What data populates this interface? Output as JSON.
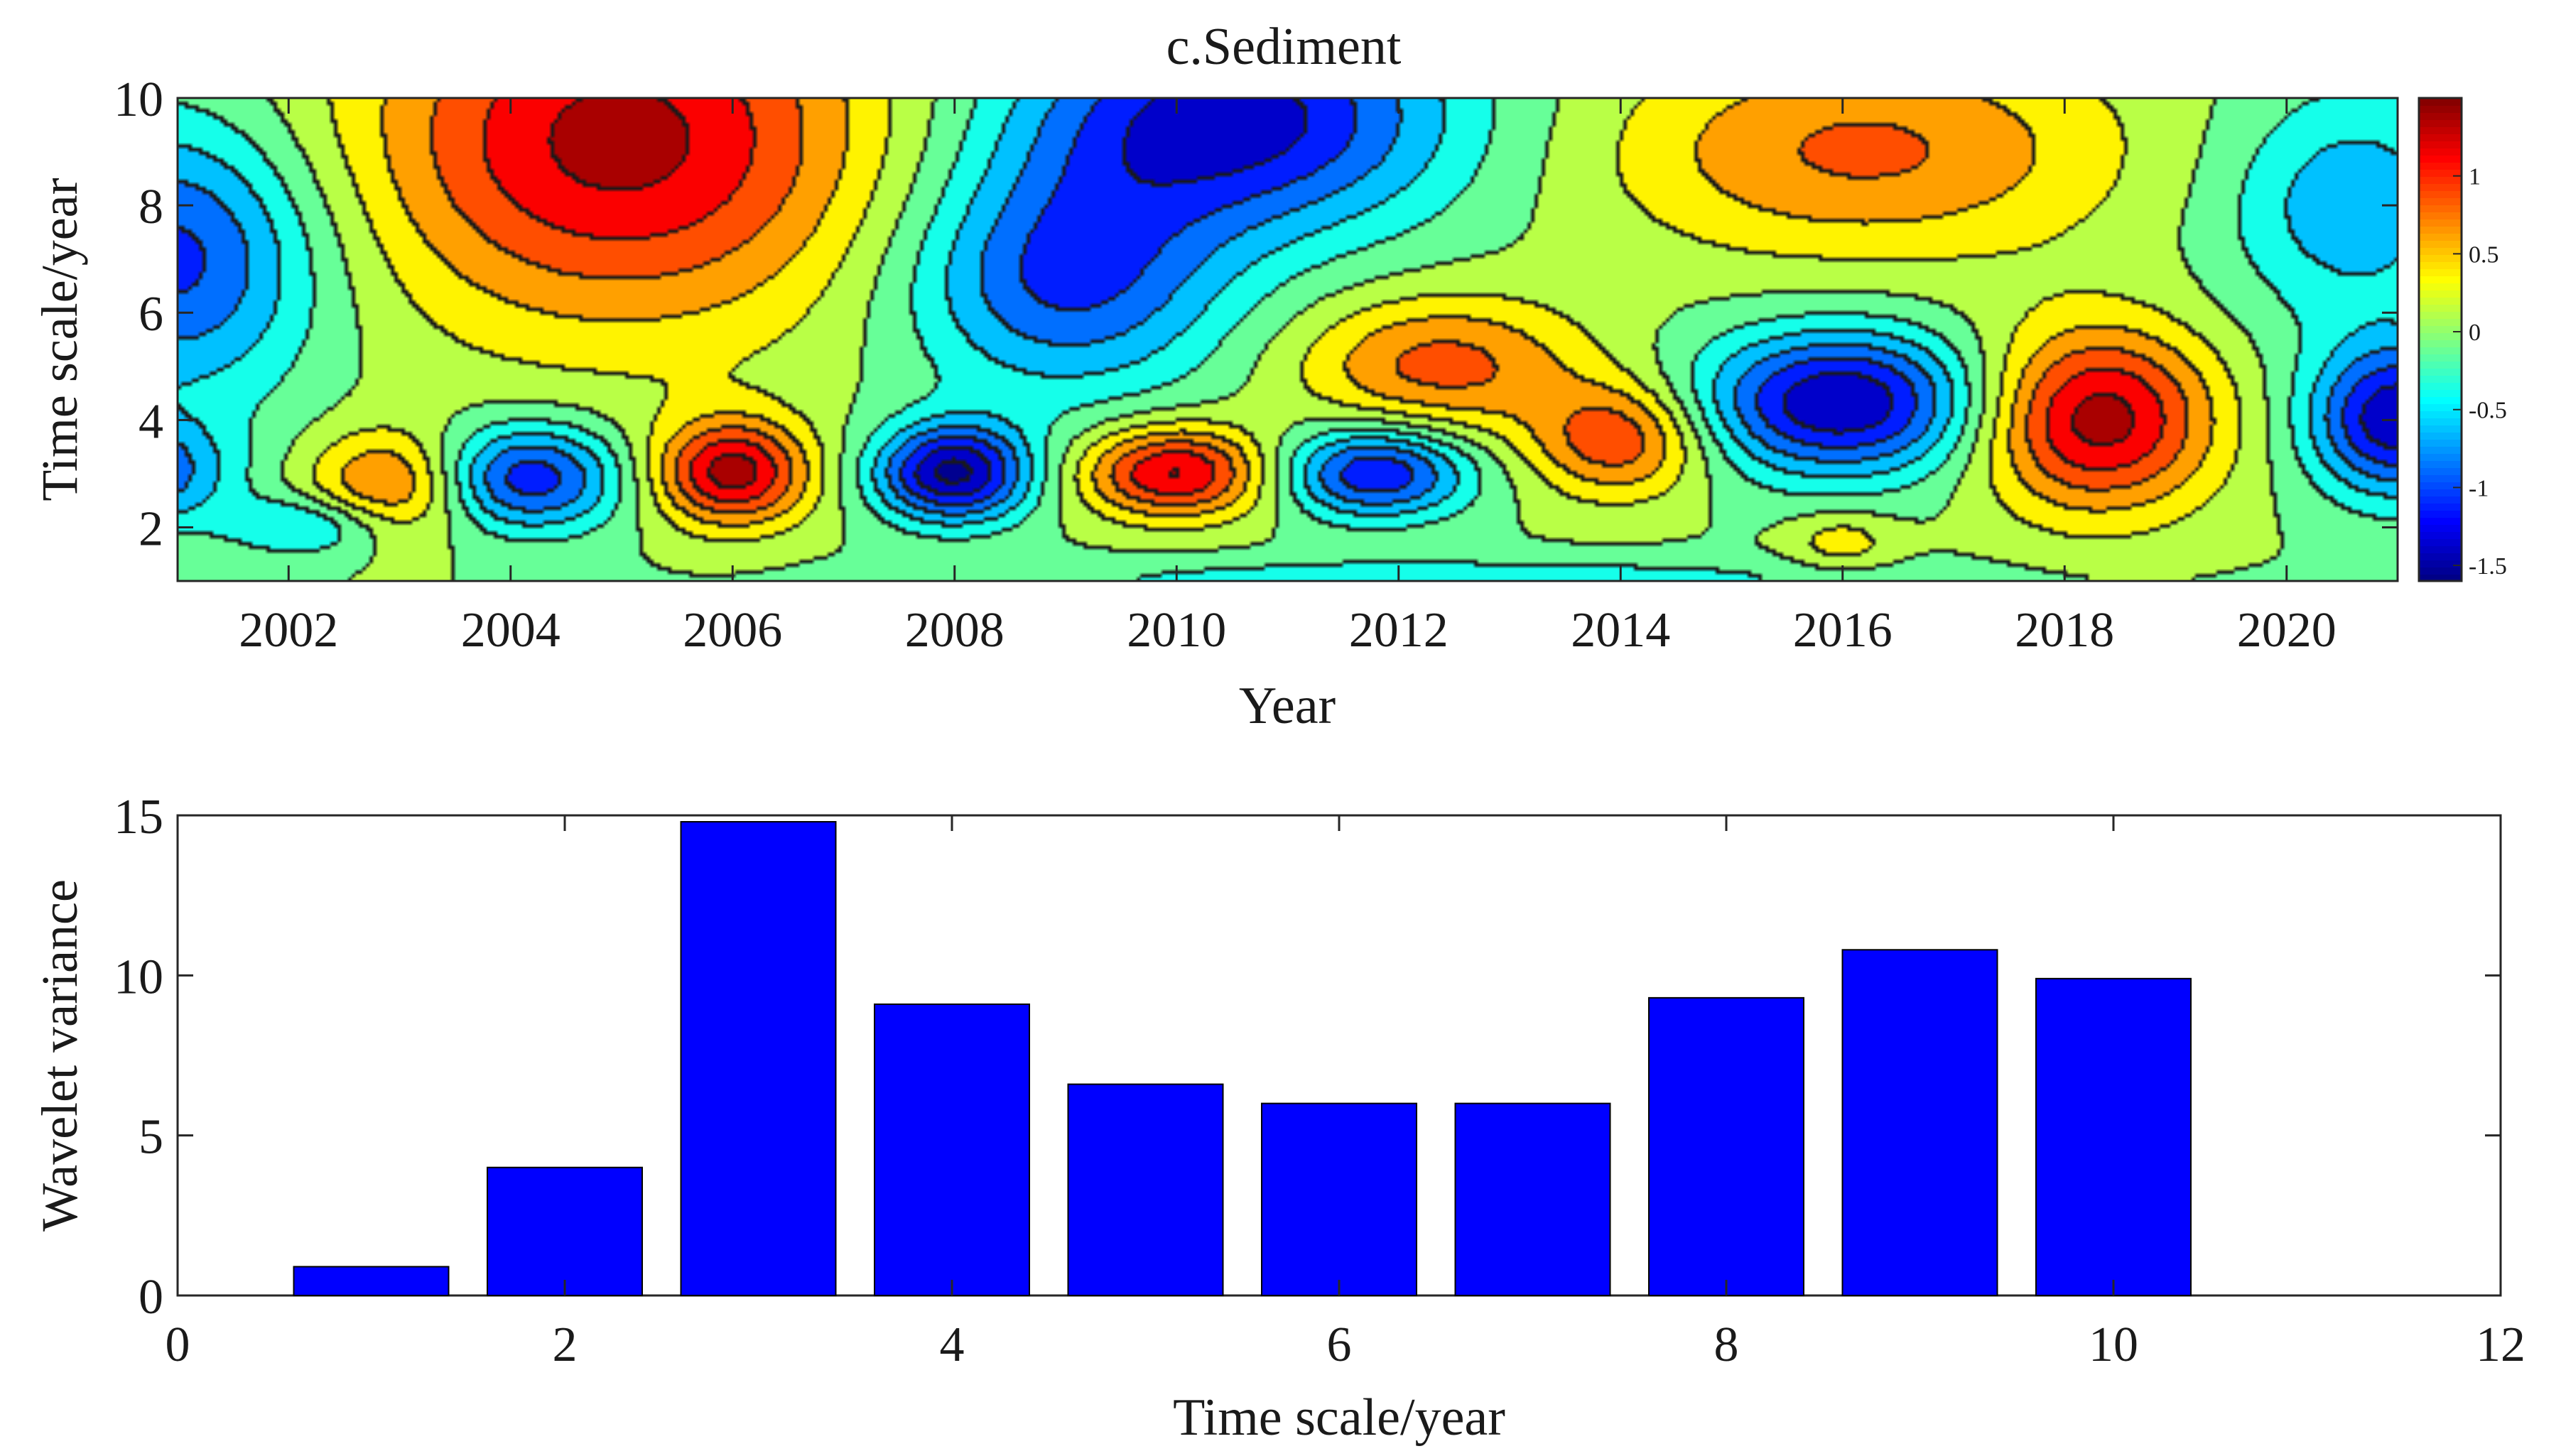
{
  "chart_data": [
    {
      "type": "heatmap",
      "title": "c.Sediment",
      "xlabel": "Year",
      "ylabel": "Time scale/year",
      "xlim": [
        2001,
        2021
      ],
      "ylim": [
        1,
        10
      ],
      "x_ticks": [
        2002,
        2004,
        2006,
        2008,
        2010,
        2012,
        2014,
        2016,
        2018,
        2020
      ],
      "y_ticks": [
        2,
        4,
        6,
        8,
        10
      ],
      "grid": false,
      "colorbar": {
        "location": "right",
        "range": [
          -1.6,
          1.5
        ],
        "ticks": [
          1,
          0.5,
          0,
          -0.5,
          -1,
          -1.5
        ],
        "tick_labels": [
          "1",
          "0.5",
          "0",
          "-0.5",
          "-1",
          "-1.5"
        ],
        "colors": [
          "#00007f",
          "#0000ff",
          "#007fff",
          "#00ffff",
          "#7fff7f",
          "#ffff00",
          "#ff7f00",
          "#ff0000",
          "#7f0000"
        ]
      },
      "features": [
        {
          "x": 2001,
          "y": 7.0,
          "amp": -1.1,
          "sx": 0.9,
          "sy": 1.8
        },
        {
          "x": 2000.6,
          "y": 3.0,
          "amp": -1.0,
          "sx": 0.6,
          "sy": 0.7
        },
        {
          "x": 2002.2,
          "y": 2.0,
          "amp": -0.6,
          "sx": 0.5,
          "sy": 0.4
        },
        {
          "x": 2005.0,
          "y": 9.2,
          "amp": 1.35,
          "sx": 1.6,
          "sy": 2.4
        },
        {
          "x": 2003.0,
          "y": 2.8,
          "amp": 0.95,
          "sx": 0.55,
          "sy": 0.7
        },
        {
          "x": 2004.1,
          "y": 2.9,
          "amp": -1.25,
          "sx": 0.65,
          "sy": 0.7
        },
        {
          "x": 2006.0,
          "y": 3.0,
          "amp": 1.35,
          "sx": 0.5,
          "sy": 0.7
        },
        {
          "x": 2008.0,
          "y": 3.0,
          "amp": -1.55,
          "sx": 0.5,
          "sy": 0.65
        },
        {
          "x": 2010.0,
          "y": 3.0,
          "amp": 1.3,
          "sx": 0.6,
          "sy": 0.6
        },
        {
          "x": 2011.8,
          "y": 3.0,
          "amp": -1.25,
          "sx": 0.6,
          "sy": 0.6
        },
        {
          "x": 2010.5,
          "y": 9.6,
          "amp": -1.4,
          "sx": 1.4,
          "sy": 1.5
        },
        {
          "x": 2009.0,
          "y": 6.6,
          "amp": -1.05,
          "sx": 1.0,
          "sy": 1.5
        },
        {
          "x": 2012.4,
          "y": 5.0,
          "amp": 0.85,
          "sx": 0.9,
          "sy": 0.9
        },
        {
          "x": 2014.0,
          "y": 3.6,
          "amp": 0.95,
          "sx": 0.55,
          "sy": 0.75
        },
        {
          "x": 2016.2,
          "y": 9.0,
          "amp": 0.8,
          "sx": 1.6,
          "sy": 1.4
        },
        {
          "x": 2016.0,
          "y": 4.3,
          "amp": -1.5,
          "sx": 0.9,
          "sy": 0.95
        },
        {
          "x": 2016.0,
          "y": 1.7,
          "amp": 0.4,
          "sx": 0.35,
          "sy": 0.4
        },
        {
          "x": 2018.3,
          "y": 4.0,
          "amp": 1.4,
          "sx": 0.75,
          "sy": 1.2
        },
        {
          "x": 2021.0,
          "y": 4.0,
          "amp": -1.45,
          "sx": 0.55,
          "sy": 1.0
        },
        {
          "x": 2020.6,
          "y": 8.0,
          "amp": -0.7,
          "sx": 0.8,
          "sy": 1.5
        },
        {
          "x": 2012.5,
          "y": 1.0,
          "amp": -0.4,
          "sx": 3.0,
          "sy": 0.3
        }
      ]
    },
    {
      "type": "bar",
      "title": "",
      "xlabel": "Time scale/year",
      "ylabel": "Wavelet variance",
      "x": [
        1,
        2,
        3,
        4,
        5,
        6,
        7,
        8,
        9,
        10
      ],
      "values": [
        0.9,
        4.0,
        14.8,
        9.1,
        6.6,
        6.0,
        6.0,
        9.3,
        10.8,
        9.9
      ],
      "bar_color": "#0000ff",
      "xlim": [
        0,
        12
      ],
      "ylim": [
        0,
        15
      ],
      "x_ticks": [
        0,
        2,
        4,
        6,
        8,
        10,
        12
      ],
      "y_ticks": [
        0,
        5,
        10,
        15
      ],
      "grid": false
    }
  ]
}
